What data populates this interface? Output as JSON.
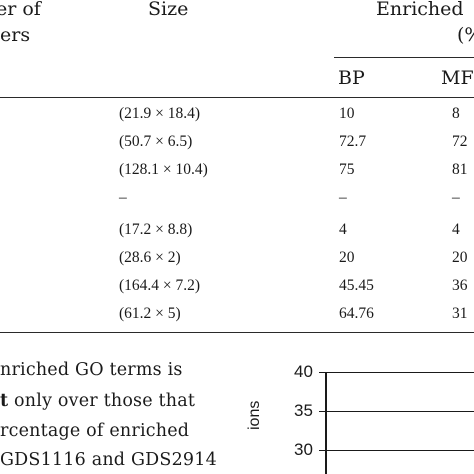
{
  "table": {
    "header": {
      "col1_line1": "er of",
      "col1_line2": "ers",
      "size": "Size",
      "enriched_line1": "Enriched",
      "enriched_line2": "(%",
      "bp": "BP",
      "mf": "MF"
    },
    "rows": [
      {
        "size": "(21.9 × 18.4)",
        "bp": "10",
        "mf": "8"
      },
      {
        "size": "(50.7 × 6.5)",
        "bp": "72.7",
        "mf": "72"
      },
      {
        "size": "(128.1 × 10.4)",
        "bp": "75",
        "mf": "81"
      },
      {
        "size": "–",
        "bp": "–",
        "mf": "–"
      },
      {
        "size": "(17.2 × 8.8)",
        "bp": "4",
        "mf": "4"
      },
      {
        "size": "(28.6 × 2)",
        "bp": "20",
        "mf": "20"
      },
      {
        "size": "(164.4 × 7.2)",
        "bp": "45.45",
        "mf": "36"
      },
      {
        "size": "(61.2 × 5)",
        "bp": "64.76",
        "mf": "31"
      }
    ]
  },
  "text": {
    "line1": "nriched GO terms is",
    "line2_bold": "t",
    "line2_rest": " only over those that",
    "line3": "rcentage of enriched",
    "line4": "GDS1116 and GDS2914"
  },
  "chart_data": {
    "type": "line",
    "ylabel": "ions",
    "yticks": [
      "40",
      "35",
      "30"
    ],
    "ylim": [
      28,
      40
    ]
  }
}
